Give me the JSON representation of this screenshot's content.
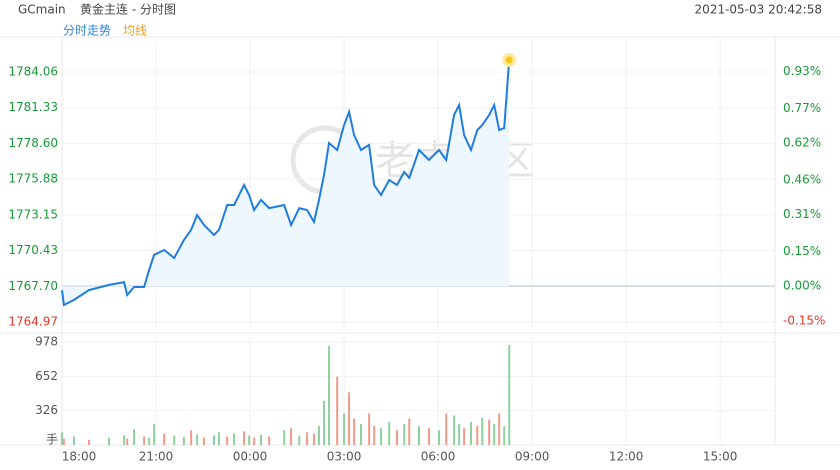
{
  "header": {
    "symbol": "GCmain",
    "name": "黄金主连 - 分时图",
    "datetime": "2021-05-03 20:42:58",
    "tabs": [
      "分时走势",
      "均线"
    ],
    "tab_colors": [
      "#2f86e0",
      "#f0a020"
    ],
    "watermark": "老虎社区"
  },
  "chart_data": [
    {
      "type": "line",
      "color": "#1f7de0",
      "area_color": "#eef7fd",
      "x": [
        0,
        0.06,
        0.38,
        0.86,
        1.5,
        1.98,
        2.08,
        2.3,
        2.62,
        2.78,
        2.94,
        3.26,
        3.58,
        3.89,
        4.12,
        4.31,
        4.53,
        4.85,
        5.01,
        5.27,
        5.49,
        5.81,
        5.97,
        6.13,
        6.35,
        6.61,
        7.09,
        7.31,
        7.57,
        7.82,
        8.04,
        8.2,
        8.36,
        8.52,
        8.78,
        9.0,
        9.16,
        9.32,
        9.54,
        9.8,
        9.96,
        10.18,
        10.44,
        10.69,
        10.92,
        11.08,
        11.39,
        11.71,
        12.03,
        12.26,
        12.51,
        12.67,
        12.83,
        13.05,
        13.25,
        13.41,
        13.63,
        13.79,
        13.95,
        14.11,
        14.27
      ],
      "values": [
        1767.41,
        1766.27,
        1766.65,
        1767.41,
        1767.8,
        1768.02,
        1767.03,
        1767.64,
        1767.64,
        1768.94,
        1770.09,
        1770.47,
        1769.86,
        1771.23,
        1772.0,
        1773.14,
        1772.38,
        1771.61,
        1772.0,
        1773.9,
        1773.9,
        1775.43,
        1774.67,
        1773.52,
        1774.29,
        1773.67,
        1773.9,
        1772.38,
        1773.67,
        1773.52,
        1772.61,
        1774.29,
        1776.19,
        1778.64,
        1778.1,
        1780.01,
        1781.01,
        1779.25,
        1778.1,
        1778.49,
        1775.43,
        1774.67,
        1775.81,
        1775.43,
        1776.42,
        1775.97,
        1778.1,
        1777.34,
        1778.1,
        1777.34,
        1780.78,
        1781.54,
        1779.25,
        1778.1,
        1779.63,
        1780.01,
        1780.78,
        1781.54,
        1779.63,
        1779.78,
        1784.98
      ],
      "xlim": [
        0,
        22.75
      ],
      "xticks": [
        {
          "value": 0,
          "label": "18:00"
        },
        {
          "value": 3,
          "label": "21:00"
        },
        {
          "value": 6,
          "label": "00:00"
        },
        {
          "value": 9,
          "label": "03:00"
        },
        {
          "value": 12,
          "label": "06:00"
        },
        {
          "value": 15,
          "label": "09:00"
        },
        {
          "value": 18,
          "label": "12:00"
        },
        {
          "value": 21,
          "label": "15:00"
        }
      ],
      "ylim": [
        1764.36,
        1786.73
      ],
      "yticks": [
        1784.06,
        1781.33,
        {
          "value": 1778.6,
          "label": "1778.60"
        },
        1775.88,
        1773.15,
        1770.43,
        {
          "value": 1767.7,
          "label": "1767.70"
        },
        1764.97
      ],
      "y2lim": [
        -0.19,
        1.08
      ],
      "y2ticks": [
        {
          "value": 0.93,
          "label": "0.93%"
        },
        {
          "value": 0.77,
          "label": "0.77%"
        },
        {
          "value": 0.62,
          "label": "0.62%"
        },
        {
          "value": 0.46,
          "label": "0.46%"
        },
        {
          "value": 0.31,
          "label": "0.31%"
        },
        {
          "value": 0.15,
          "label": "0.15%"
        },
        {
          "value": 0,
          "label": "0.00%"
        },
        {
          "value": -0.15,
          "label": "-0.15%"
        }
      ],
      "up_color": "#1a9a3a",
      "down_color": "#e03a2a",
      "grid": true
    },
    {
      "type": "bar",
      "x": [
        0,
        0.06,
        0.38,
        0.86,
        1.5,
        1.98,
        2.08,
        2.3,
        2.62,
        2.78,
        2.94,
        3.26,
        3.58,
        3.89,
        4.12,
        4.31,
        4.53,
        4.85,
        5.01,
        5.27,
        5.49,
        5.81,
        5.97,
        6.13,
        6.35,
        6.61,
        7.09,
        7.31,
        7.57,
        7.82,
        8.04,
        8.2,
        8.36,
        8.52,
        8.78,
        9.0,
        9.16,
        9.32,
        9.54,
        9.8,
        9.96,
        10.18,
        10.44,
        10.69,
        10.92,
        11.08,
        11.39,
        11.71,
        12.03,
        12.26,
        12.51,
        12.67,
        12.83,
        13.05,
        13.25,
        13.41,
        13.63,
        13.79,
        13.95,
        14.11,
        14.27
      ],
      "values": [
        120,
        60,
        80,
        50,
        70,
        90,
        60,
        150,
        80,
        70,
        200,
        110,
        90,
        80,
        140,
        100,
        70,
        90,
        120,
        80,
        110,
        130,
        90,
        70,
        100,
        80,
        140,
        160,
        90,
        120,
        110,
        180,
        420,
        940,
        650,
        300,
        500,
        250,
        200,
        300,
        180,
        160,
        220,
        140,
        200,
        250,
        180,
        160,
        140,
        300,
        280,
        200,
        160,
        220,
        180,
        260,
        240,
        200,
        300,
        180,
        950
      ],
      "colors": [
        "#8fd19e",
        "#f29a8a",
        "#8fd19e",
        "#f29a8a",
        "#8fd19e",
        "#8fd19e",
        "#f29a8a",
        "#8fd19e",
        "#f29a8a",
        "#8fd19e",
        "#8fd19e",
        "#f29a8a",
        "#8fd19e",
        "#8fd19e",
        "#f29a8a",
        "#8fd19e",
        "#f29a8a",
        "#8fd19e",
        "#8fd19e",
        "#f29a8a",
        "#8fd19e",
        "#f29a8a",
        "#8fd19e",
        "#f29a8a",
        "#8fd19e",
        "#f29a8a",
        "#8fd19e",
        "#f29a8a",
        "#8fd19e",
        "#f29a8a",
        "#f29a8a",
        "#8fd19e",
        "#8fd19e",
        "#8fd19e",
        "#f29a8a",
        "#8fd19e",
        "#f29a8a",
        "#f29a8a",
        "#8fd19e",
        "#f29a8a",
        "#f29a8a",
        "#8fd19e",
        "#8fd19e",
        "#f29a8a",
        "#8fd19e",
        "#f29a8a",
        "#8fd19e",
        "#f29a8a",
        "#8fd19e",
        "#f29a8a",
        "#8fd19e",
        "#8fd19e",
        "#f29a8a",
        "#8fd19e",
        "#f29a8a",
        "#8fd19e",
        "#f29a8a",
        "#8fd19e",
        "#f29a8a",
        "#8fd19e",
        "#8fd19e"
      ],
      "xlim": [
        0,
        22.75
      ],
      "ylim": [
        0,
        1026
      ],
      "yticks": [
        {
          "value": 0,
          "label": "手"
        },
        326,
        652,
        978
      ],
      "grid": true
    }
  ]
}
